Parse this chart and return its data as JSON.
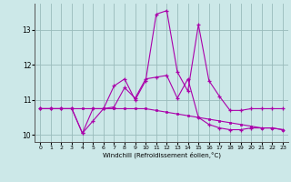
{
  "xlabel": "Windchill (Refroidissement éolien,°C)",
  "xlim": [
    -0.5,
    23.5
  ],
  "ylim": [
    9.8,
    13.75
  ],
  "yticks": [
    10,
    11,
    12,
    13
  ],
  "xticks": [
    0,
    1,
    2,
    3,
    4,
    5,
    6,
    7,
    8,
    9,
    10,
    11,
    12,
    13,
    14,
    15,
    16,
    17,
    18,
    19,
    20,
    21,
    22,
    23
  ],
  "bg_color": "#cce8e8",
  "line_color": "#aa00aa",
  "grid_color": "#99bbbb",
  "line1_x": [
    0,
    1,
    2,
    3,
    4,
    5,
    6,
    7,
    8,
    9,
    10,
    11,
    12,
    13,
    14,
    15,
    16,
    17,
    18,
    19,
    20,
    21,
    22,
    23
  ],
  "line1_y": [
    10.75,
    10.75,
    10.75,
    10.75,
    10.05,
    10.4,
    10.75,
    11.4,
    11.6,
    11.0,
    11.55,
    13.45,
    13.55,
    11.8,
    11.25,
    13.15,
    11.55,
    11.1,
    10.7,
    10.7,
    10.75,
    10.75,
    10.75,
    10.75
  ],
  "line2_x": [
    0,
    1,
    2,
    3,
    4,
    5,
    6,
    7,
    8,
    9,
    10,
    11,
    12,
    13,
    14,
    15,
    16,
    17,
    18,
    19,
    20,
    21,
    22,
    23
  ],
  "line2_y": [
    10.75,
    10.75,
    10.75,
    10.75,
    10.75,
    10.75,
    10.75,
    10.75,
    10.75,
    10.75,
    10.75,
    10.7,
    10.65,
    10.6,
    10.55,
    10.5,
    10.45,
    10.4,
    10.35,
    10.3,
    10.25,
    10.2,
    10.2,
    10.15
  ],
  "line3_x": [
    0,
    1,
    2,
    3,
    4,
    5,
    6,
    7,
    8,
    9,
    10,
    11,
    12,
    13,
    14,
    15,
    16,
    17,
    18,
    19,
    20,
    21,
    22,
    23
  ],
  "line3_y": [
    10.75,
    10.75,
    10.75,
    10.75,
    10.05,
    10.75,
    10.75,
    10.8,
    11.35,
    11.05,
    11.6,
    11.65,
    11.7,
    11.05,
    11.6,
    10.5,
    10.3,
    10.2,
    10.15,
    10.15,
    10.2,
    10.2,
    10.2,
    10.15
  ]
}
